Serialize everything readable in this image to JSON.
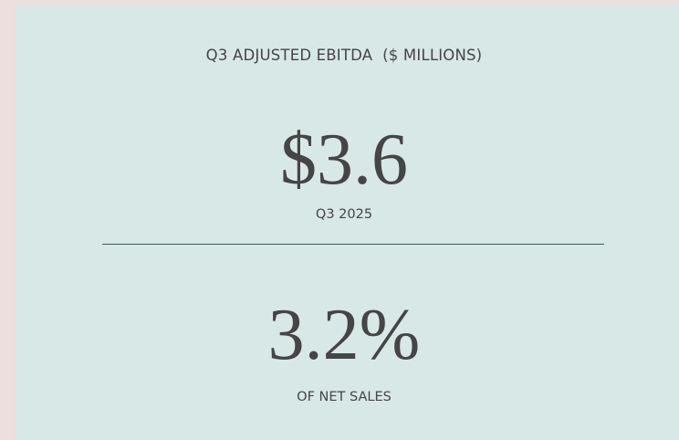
{
  "title": "Q3 ADJUSTED EBITDA  ($ MILLIONS)",
  "metrics": [
    {
      "value": "$3.6",
      "label": "Q3 2025"
    },
    {
      "value": "3.2%",
      "label": "OF NET SALES"
    }
  ]
}
